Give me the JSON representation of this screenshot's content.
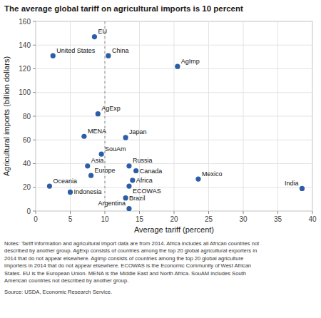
{
  "chart_data": {
    "type": "scatter",
    "title": "The average global tariff on agricultural imports is 10 percent",
    "x_label": "Average tariff (percent)",
    "y_label": "Agricultural imports (billion dollars)",
    "labels": [
      "EU",
      "United States",
      "China",
      "AgImp",
      "AgExp",
      "MENA",
      "Japan",
      "SouAm",
      "Russia",
      "Asia",
      "Canada",
      "Europe",
      "Africa",
      "Mexico",
      "Oceania",
      "ECOWAS",
      "Indonesia",
      "India",
      "Brazil",
      "Argentina"
    ],
    "x": [
      8.5,
      2.5,
      10.5,
      20.5,
      9.0,
      7.0,
      13.0,
      9.5,
      13.5,
      7.5,
      14.5,
      8.0,
      14.0,
      23.5,
      2.0,
      13.5,
      5.0,
      38.5,
      13.0,
      13.5
    ],
    "values": [
      147,
      131,
      131,
      122,
      82,
      63,
      62,
      48,
      38,
      38,
      34,
      30,
      26,
      27,
      21,
      21,
      16,
      19,
      11,
      2
    ],
    "color": "#2B5EA7",
    "vline_x": 10,
    "xlim": [
      0,
      40
    ],
    "ylim": [
      0,
      160
    ],
    "xticks": [
      0,
      5,
      10,
      15,
      20,
      25,
      30,
      35,
      40
    ],
    "yticks": [
      0,
      20,
      40,
      60,
      80,
      100,
      120,
      140,
      160
    ],
    "grid": true,
    "notes": [
      "Notes: Tariff information and agricultural import data are from 2014. Africa includes all African countries not",
      "described by another group. AgExp consists of countries among the top 20 global agricultural exporters in",
      "2014 that do not appear elsewhere. AgImp consists of countries among the top 20 global agriculture",
      "importers in 2014 that do not appear elsewhere. ECOWAS is the Economic Community of West African",
      "States. EU is the European Union. MENA is the Middle East and North Africa. SouAM includes South",
      "American countries not described by another group."
    ],
    "source": "Source: USDA, Economic Research Service."
  }
}
